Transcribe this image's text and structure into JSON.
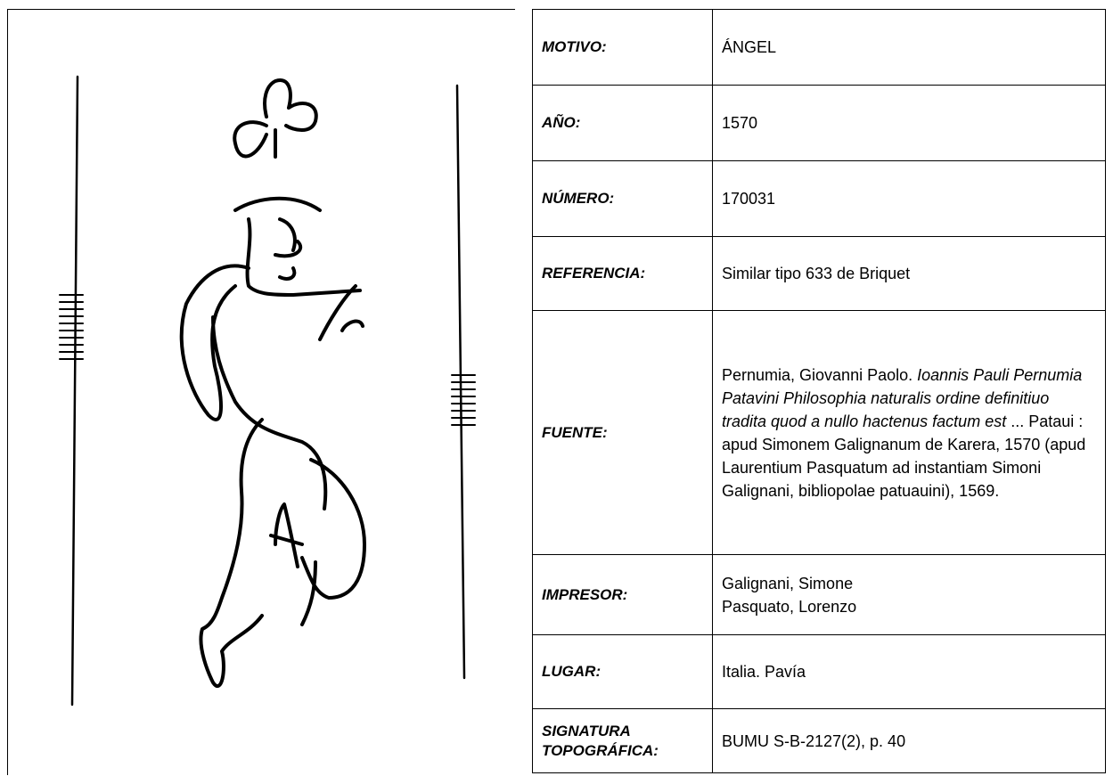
{
  "table": {
    "rows": [
      {
        "label": "MOTIVO:",
        "value": "ÁNGEL"
      },
      {
        "label": "AÑO:",
        "value": "1570"
      },
      {
        "label": "NÚMERO:",
        "value": "170031"
      },
      {
        "label": "REFERENCIA:",
        "value": "Similar tipo 633 de Briquet"
      },
      {
        "label": "FUENTE:",
        "value": [
          "Pernumia, Giovanni Paolo.",
          "Ioannis Pauli Pernumia Patavini Philosophia naturalis ordine definitiuo tradita quod a nullo hactenus factum est",
          "... Pataui : apud Simonem Galignanum de Karera, 1570 (apud Laurentium Pasquatum ad instantiam Simoni Galignani, bibliopolae patuauini), 1569."
        ]
      },
      {
        "label": "IMPRESOR:",
        "value": [
          "Galignani, Simone",
          "Pasquato, Lorenzo"
        ]
      },
      {
        "label": "LUGAR:",
        "value": "Italia. Pavía"
      },
      {
        "label": "SIGNATURA TOPOGRÁFICA:",
        "value": "BUMU S-B-2127(2), p. 40"
      }
    ]
  }
}
